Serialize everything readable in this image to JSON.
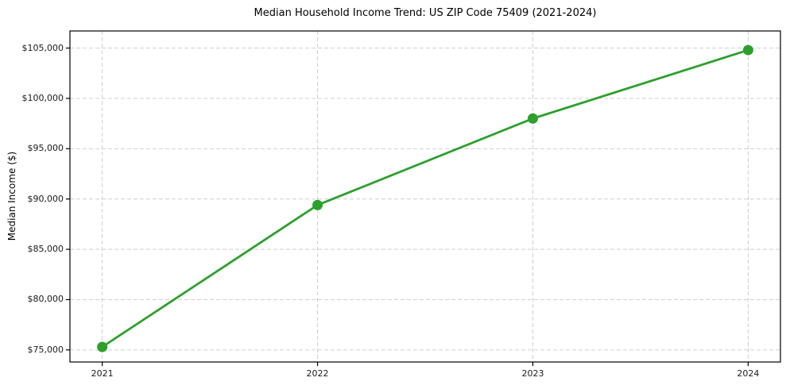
{
  "chart_data": {
    "type": "line",
    "title": "Median Household Income Trend: US ZIP Code 75409 (2021-2024)",
    "ylabel": "Median Income ($)",
    "xlabel": "",
    "x": [
      2021,
      2022,
      2023,
      2024
    ],
    "x_tick_labels": [
      "2021",
      "2022",
      "2023",
      "2024"
    ],
    "values": [
      75300,
      89400,
      98000,
      104800
    ],
    "y_ticks": [
      75000,
      80000,
      85000,
      90000,
      95000,
      100000,
      105000
    ],
    "y_tick_labels": [
      "$75,000",
      "$80,000",
      "$85,000",
      "$90,000",
      "$95,000",
      "$100,000",
      "$105,000"
    ],
    "xlim": [
      2020.85,
      2024.15
    ],
    "ylim": [
      73800,
      106700
    ],
    "grid": true,
    "grid_line_style": "dashed",
    "legend_position": "none",
    "marker": "circle",
    "colors": {
      "line": "#2ca02c",
      "marker": "#2ca02c",
      "grid": "#c9c9c9",
      "spine": "#000000",
      "tick": "#000000",
      "text": "#1a1a1a",
      "background": "#ffffff"
    }
  }
}
